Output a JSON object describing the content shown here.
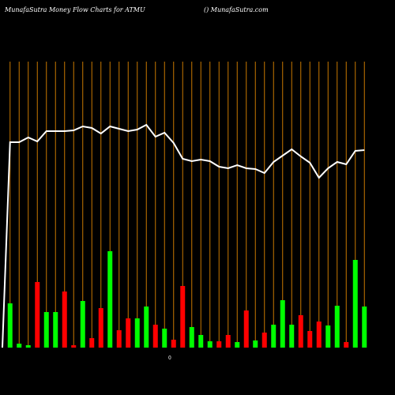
{
  "chart_data": {
    "type": "bar",
    "title": "MunafaSutra  Money Flow  Charts for ATMU",
    "subtitle": "() MunafaSutra.com",
    "zero_label": "0",
    "categories": [
      null,
      null,
      null,
      null,
      null,
      null,
      null,
      null,
      null,
      null,
      null,
      null,
      null,
      null,
      null,
      null,
      null,
      null,
      null,
      null,
      null,
      null,
      null,
      null,
      null,
      null,
      null,
      null,
      null,
      null,
      null,
      null,
      null,
      null,
      null,
      null,
      null,
      null,
      null,
      null
    ],
    "values": [
      56,
      5,
      3,
      83,
      45,
      45,
      71,
      3,
      59,
      12,
      50,
      122,
      22,
      37,
      37,
      52,
      29,
      24,
      10,
      78,
      26,
      16,
      8,
      8,
      16,
      7,
      47,
      9,
      19,
      29,
      60,
      29,
      41,
      21,
      33,
      28,
      53,
      7,
      111,
      52
    ],
    "colors": [
      "#00ff00",
      "#00ff00",
      "#00ff00",
      "#ff0000",
      "#00ff00",
      "#00ff00",
      "#ff0000",
      "#ff0000",
      "#00ff00",
      "#ff0000",
      "#ff0000",
      "#00ff00",
      "#ff0000",
      "#ff0000",
      "#00ff00",
      "#00ff00",
      "#ff0000",
      "#00ff00",
      "#ff0000",
      "#ff0000",
      "#00ff00",
      "#00ff00",
      "#00ff00",
      "#ff0000",
      "#ff0000",
      "#00ff00",
      "#ff0000",
      "#00ff00",
      "#ff0000",
      "#00ff00",
      "#00ff00",
      "#00ff00",
      "#ff0000",
      "#ff0000",
      "#ff0000",
      "#00ff00",
      "#00ff00",
      "#ff0000",
      "#00ff00",
      "#00ff00"
    ],
    "line": {
      "color": "#ffffff",
      "values": [
        260,
        260,
        266,
        261,
        274,
        274,
        274,
        275,
        280,
        278,
        271,
        280,
        277,
        274,
        276,
        282,
        267,
        272,
        259,
        239,
        236,
        238,
        236,
        229,
        227,
        231,
        227,
        226,
        221,
        235,
        243,
        251,
        242,
        234,
        215,
        227,
        235,
        232,
        249,
        250
      ]
    },
    "ylim": [
      0,
      440
    ]
  }
}
